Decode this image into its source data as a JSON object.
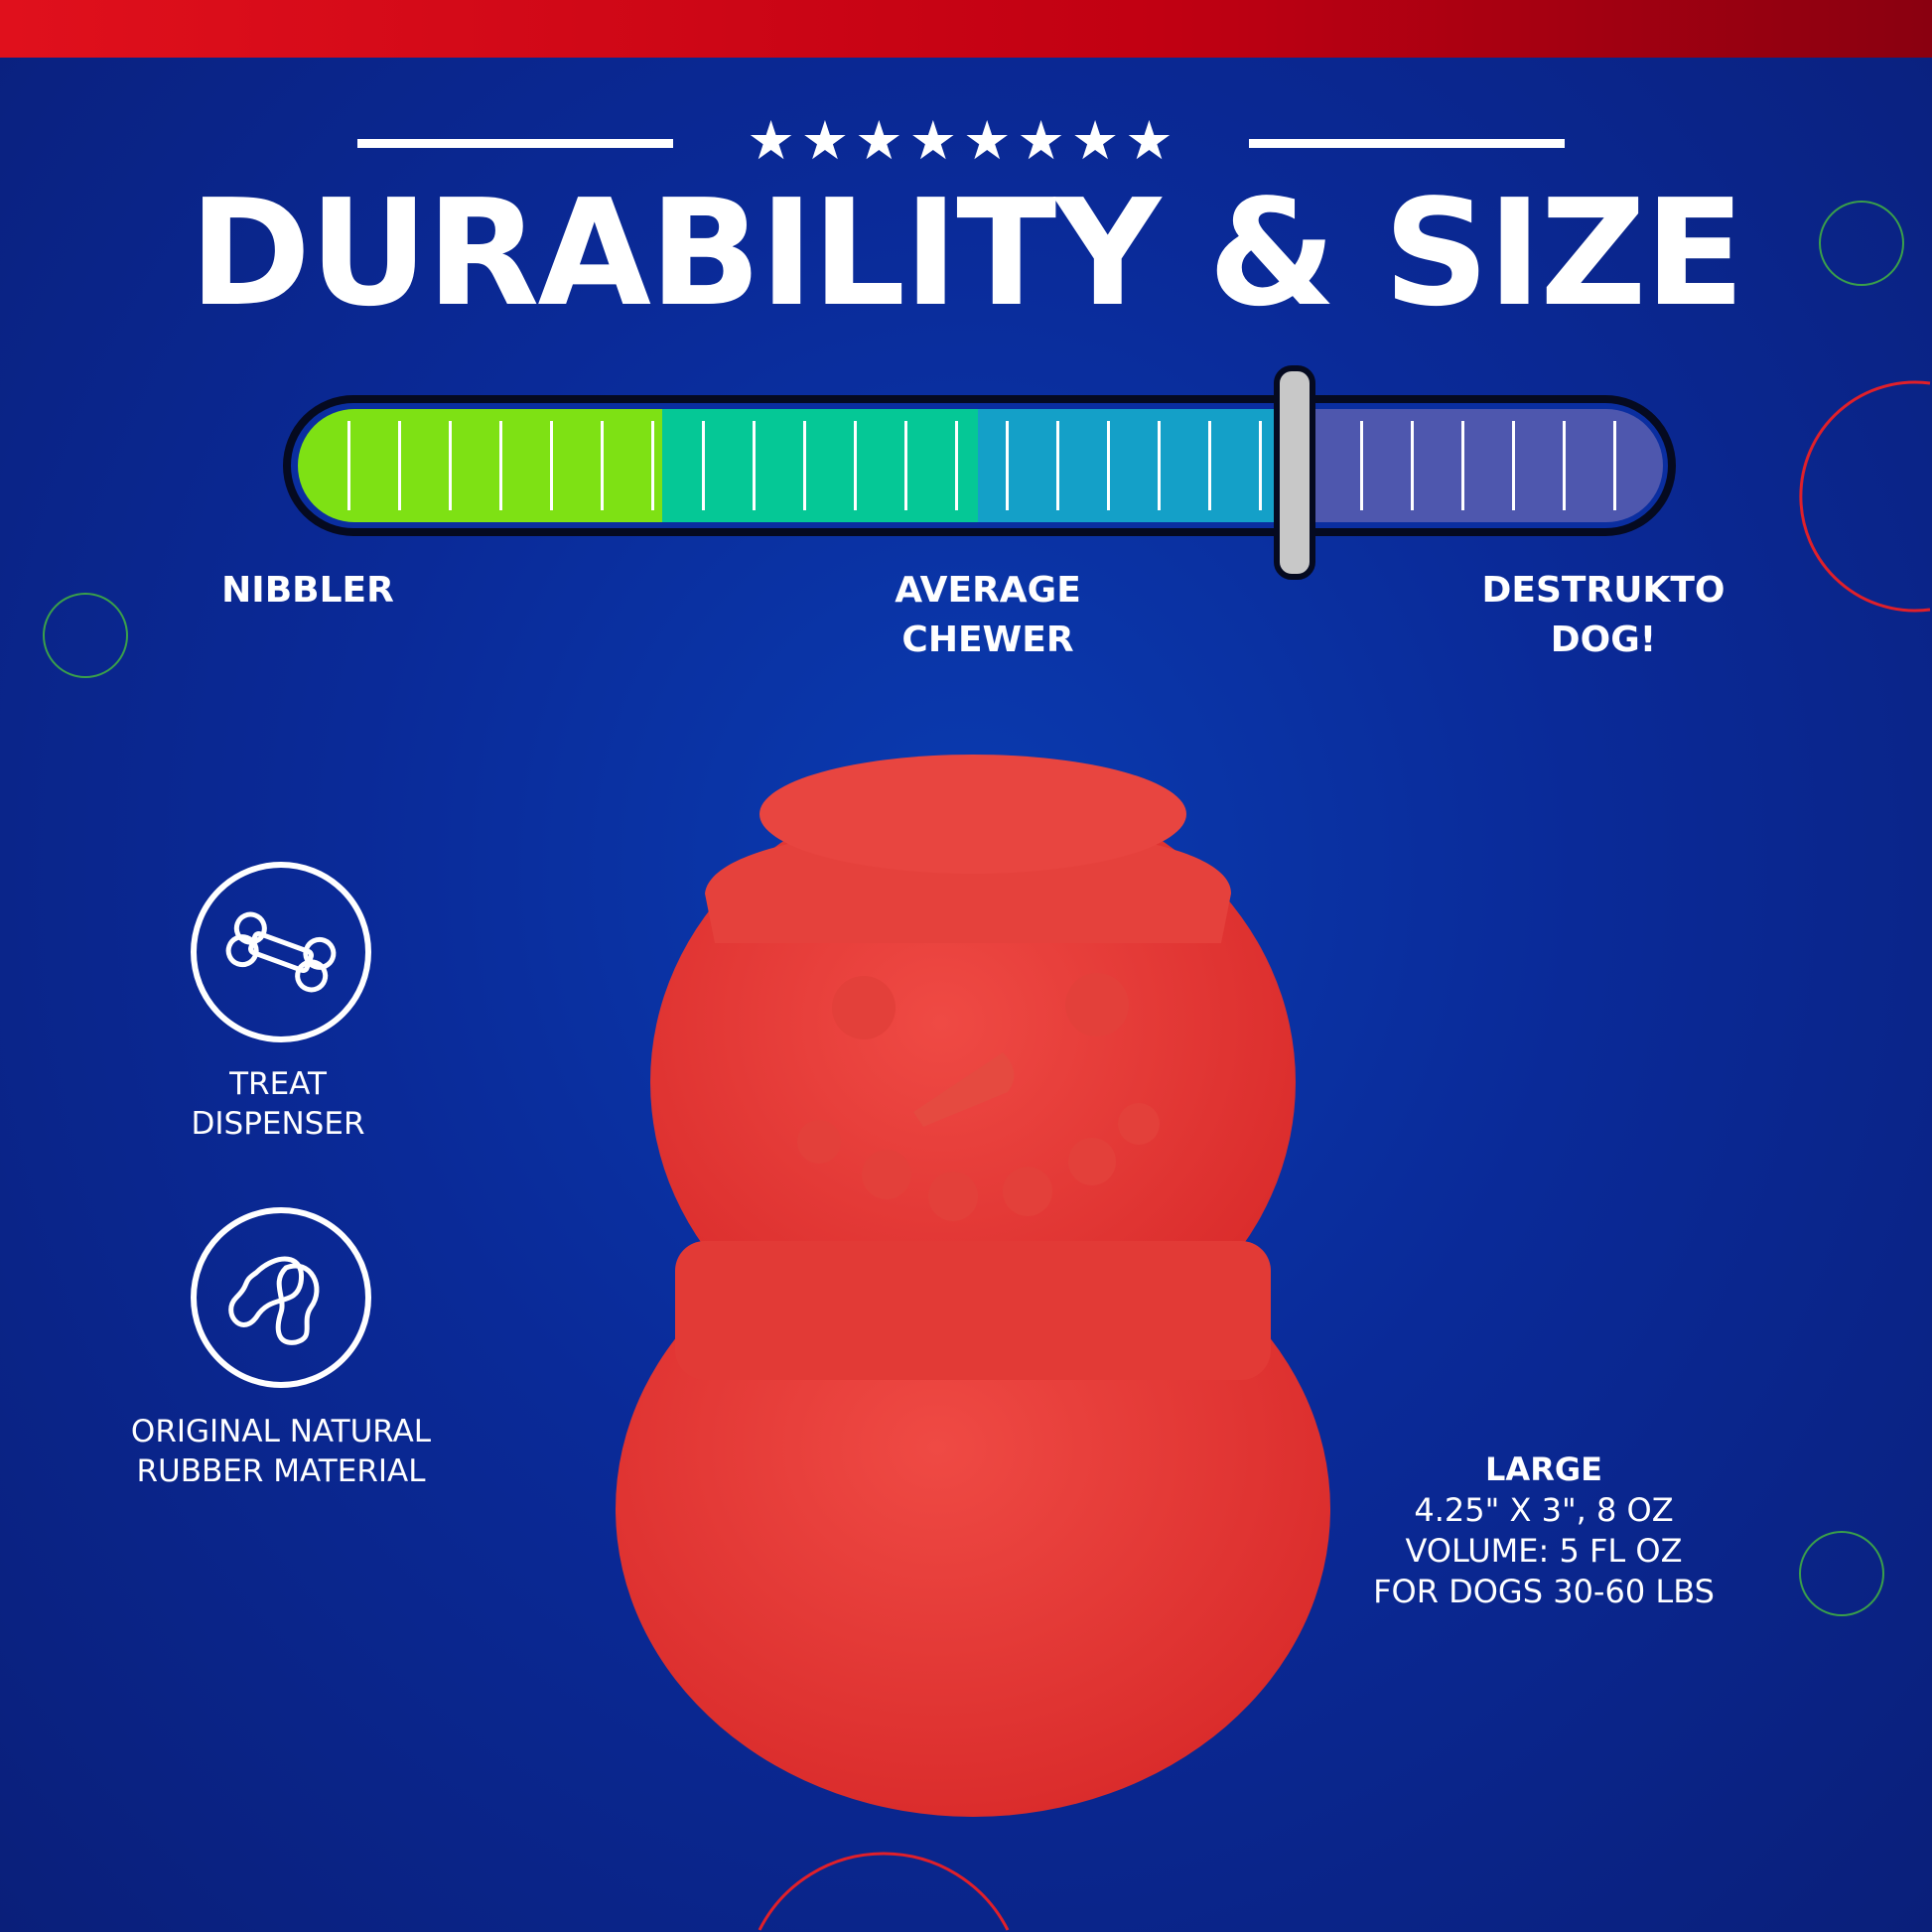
{
  "header": {
    "stars": "★★★★★★★★",
    "title": "DURABILITY & SIZE"
  },
  "durability_meter": {
    "labels": {
      "low": "NIBBLER",
      "mid_line1": "AVERAGE",
      "mid_line2": "CHEWER",
      "high_line1": "DESTRUKTO",
      "high_line2": "DOG!"
    },
    "level_percent": 73,
    "colors": {
      "green": "#7ee114",
      "teal": "#05c896",
      "blue": "#14a0c8",
      "purple": "#4e57ae"
    }
  },
  "features": [
    {
      "icon": "bone-icon",
      "line1": "TREAT",
      "line2": "DISPENSER"
    },
    {
      "icon": "rubber-icon",
      "line1": "ORIGINAL NATURAL",
      "line2": "RUBBER MATERIAL"
    }
  ],
  "specs": {
    "size": "LARGE",
    "dimensions": "4.25\" X 3\", 8 OZ",
    "volume": "VOLUME: 5 FL OZ",
    "dogs": "FOR DOGS 30-60 LBS"
  },
  "colors": {
    "background": "#0a2a98",
    "accent_red": "#e0101c",
    "product": "#e63a3a"
  }
}
